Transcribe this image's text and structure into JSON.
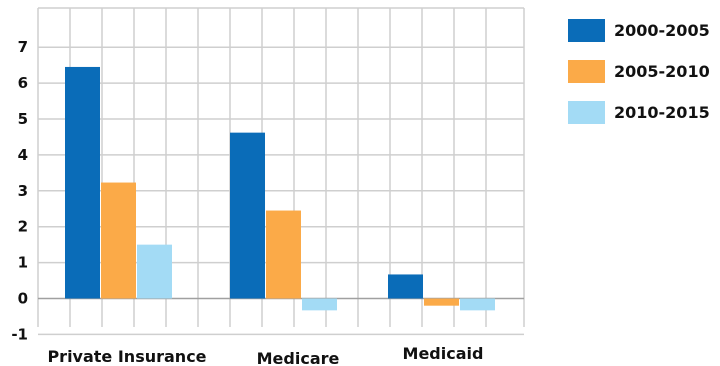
{
  "chart_data": {
    "type": "bar",
    "categories": [
      "Private Insurance",
      "Medicare",
      "Medicaid"
    ],
    "series": [
      {
        "name": "2000-2005",
        "values": [
          6.45,
          4.62,
          0.67
        ],
        "color": "#0a6cb8"
      },
      {
        "name": "2005-2010",
        "values": [
          3.23,
          2.45,
          -0.2
        ],
        "color": "#fbaa48"
      },
      {
        "name": "2010-2015",
        "values": [
          1.5,
          -0.33,
          -0.33
        ],
        "color": "#a3dbf5"
      }
    ],
    "ylim": [
      -1,
      7.5
    ],
    "yticks": [
      -1,
      0,
      1,
      2,
      3,
      4,
      5,
      6,
      7
    ],
    "grid": true,
    "legend_position": "top-right",
    "title": "",
    "xlabel": "",
    "ylabel": ""
  }
}
